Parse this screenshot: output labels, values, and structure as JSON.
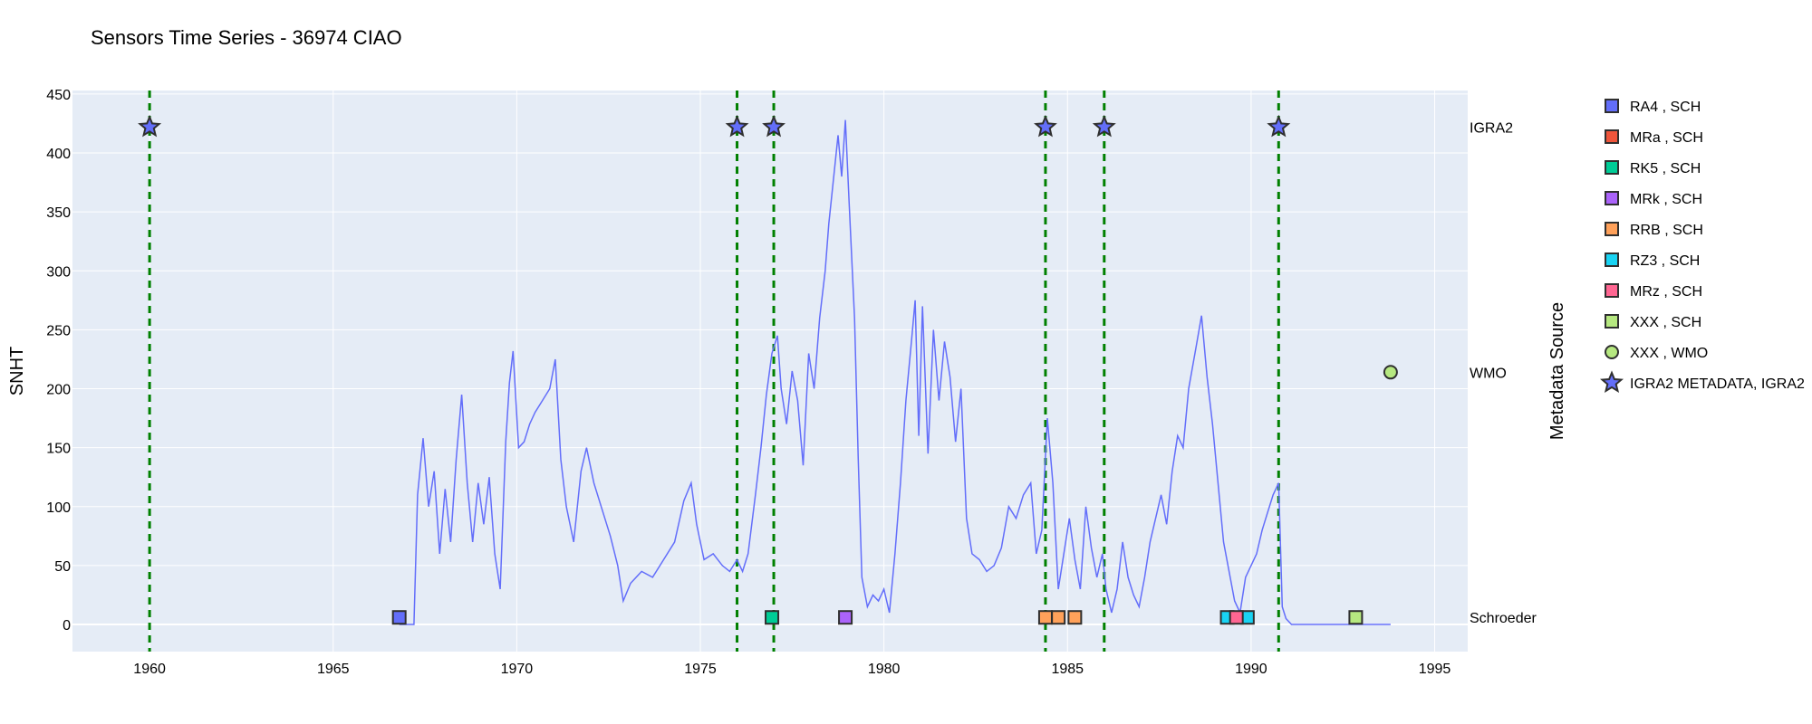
{
  "chart_data": {
    "type": "line",
    "title": "Sensors Time Series - 36974 CIAO",
    "ylabel": "SNHT",
    "secondary_ylabel": "Metadata Source",
    "xlim": [
      1957.9,
      1995.9
    ],
    "ylim": [
      -23,
      453
    ],
    "x_ticks": [
      1960,
      1965,
      1970,
      1975,
      1980,
      1985,
      1990,
      1995
    ],
    "y_ticks": [
      0,
      50,
      100,
      150,
      200,
      250,
      300,
      350,
      400,
      450
    ],
    "grid": true,
    "legend_position": "right",
    "source_levels": [
      {
        "label": "IGRA2",
        "y": 422
      },
      {
        "label": "WMO",
        "y": 214
      },
      {
        "label": "Schroeder",
        "y": 6
      }
    ],
    "snht_series": {
      "name": "SNHT",
      "color": "#636efa",
      "points": [
        [
          1966.8,
          0
        ],
        [
          1967.2,
          0
        ],
        [
          1967.3,
          110
        ],
        [
          1967.45,
          158
        ],
        [
          1967.6,
          100
        ],
        [
          1967.75,
          130
        ],
        [
          1967.9,
          60
        ],
        [
          1968.05,
          115
        ],
        [
          1968.2,
          70
        ],
        [
          1968.35,
          140
        ],
        [
          1968.5,
          195
        ],
        [
          1968.65,
          120
        ],
        [
          1968.8,
          70
        ],
        [
          1968.95,
          120
        ],
        [
          1969.1,
          85
        ],
        [
          1969.25,
          125
        ],
        [
          1969.4,
          60
        ],
        [
          1969.55,
          30
        ],
        [
          1969.7,
          155
        ],
        [
          1969.8,
          205
        ],
        [
          1969.9,
          232
        ],
        [
          1970.05,
          150
        ],
        [
          1970.2,
          155
        ],
        [
          1970.35,
          170
        ],
        [
          1970.5,
          180
        ],
        [
          1970.7,
          190
        ],
        [
          1970.9,
          200
        ],
        [
          1971.05,
          225
        ],
        [
          1971.2,
          140
        ],
        [
          1971.35,
          100
        ],
        [
          1971.55,
          70
        ],
        [
          1971.75,
          130
        ],
        [
          1971.9,
          150
        ],
        [
          1972.1,
          120
        ],
        [
          1972.35,
          95
        ],
        [
          1972.55,
          75
        ],
        [
          1972.75,
          50
        ],
        [
          1972.9,
          20
        ],
        [
          1973.1,
          35
        ],
        [
          1973.4,
          45
        ],
        [
          1973.7,
          40
        ],
        [
          1974.0,
          55
        ],
        [
          1974.3,
          70
        ],
        [
          1974.55,
          105
        ],
        [
          1974.75,
          120
        ],
        [
          1974.9,
          85
        ],
        [
          1975.1,
          55
        ],
        [
          1975.35,
          60
        ],
        [
          1975.6,
          50
        ],
        [
          1975.8,
          45
        ],
        [
          1976.0,
          55
        ],
        [
          1976.15,
          45
        ],
        [
          1976.3,
          60
        ],
        [
          1976.5,
          110
        ],
        [
          1976.65,
          150
        ],
        [
          1976.8,
          195
        ],
        [
          1976.95,
          230
        ],
        [
          1977.1,
          245
        ],
        [
          1977.2,
          200
        ],
        [
          1977.35,
          170
        ],
        [
          1977.5,
          215
        ],
        [
          1977.65,
          190
        ],
        [
          1977.8,
          135
        ],
        [
          1977.95,
          230
        ],
        [
          1978.1,
          200
        ],
        [
          1978.25,
          260
        ],
        [
          1978.4,
          300
        ],
        [
          1978.5,
          340
        ],
        [
          1978.6,
          370
        ],
        [
          1978.75,
          415
        ],
        [
          1978.85,
          380
        ],
        [
          1978.95,
          428
        ],
        [
          1979.05,
          360
        ],
        [
          1979.2,
          260
        ],
        [
          1979.3,
          140
        ],
        [
          1979.4,
          40
        ],
        [
          1979.55,
          15
        ],
        [
          1979.7,
          25
        ],
        [
          1979.85,
          20
        ],
        [
          1980.0,
          30
        ],
        [
          1980.15,
          10
        ],
        [
          1980.3,
          60
        ],
        [
          1980.45,
          120
        ],
        [
          1980.6,
          190
        ],
        [
          1980.75,
          240
        ],
        [
          1980.85,
          275
        ],
        [
          1980.95,
          160
        ],
        [
          1981.05,
          270
        ],
        [
          1981.2,
          145
        ],
        [
          1981.35,
          250
        ],
        [
          1981.5,
          190
        ],
        [
          1981.65,
          240
        ],
        [
          1981.8,
          210
        ],
        [
          1981.95,
          155
        ],
        [
          1982.1,
          200
        ],
        [
          1982.25,
          90
        ],
        [
          1982.4,
          60
        ],
        [
          1982.6,
          55
        ],
        [
          1982.8,
          45
        ],
        [
          1983.0,
          50
        ],
        [
          1983.2,
          65
        ],
        [
          1983.4,
          100
        ],
        [
          1983.6,
          90
        ],
        [
          1983.8,
          110
        ],
        [
          1984.0,
          120
        ],
        [
          1984.15,
          60
        ],
        [
          1984.3,
          80
        ],
        [
          1984.45,
          175
        ],
        [
          1984.6,
          120
        ],
        [
          1984.75,
          30
        ],
        [
          1984.9,
          60
        ],
        [
          1985.05,
          90
        ],
        [
          1985.2,
          55
        ],
        [
          1985.35,
          30
        ],
        [
          1985.5,
          100
        ],
        [
          1985.65,
          65
        ],
        [
          1985.8,
          40
        ],
        [
          1985.95,
          60
        ],
        [
          1986.05,
          30
        ],
        [
          1986.2,
          10
        ],
        [
          1986.35,
          30
        ],
        [
          1986.5,
          70
        ],
        [
          1986.65,
          40
        ],
        [
          1986.8,
          25
        ],
        [
          1986.95,
          15
        ],
        [
          1987.1,
          40
        ],
        [
          1987.25,
          70
        ],
        [
          1987.4,
          90
        ],
        [
          1987.55,
          110
        ],
        [
          1987.7,
          85
        ],
        [
          1987.85,
          130
        ],
        [
          1988.0,
          160
        ],
        [
          1988.15,
          150
        ],
        [
          1988.3,
          200
        ],
        [
          1988.5,
          235
        ],
        [
          1988.65,
          262
        ],
        [
          1988.8,
          210
        ],
        [
          1988.95,
          170
        ],
        [
          1989.1,
          120
        ],
        [
          1989.25,
          70
        ],
        [
          1989.4,
          45
        ],
        [
          1989.55,
          20
        ],
        [
          1989.7,
          10
        ],
        [
          1989.85,
          40
        ],
        [
          1990.0,
          50
        ],
        [
          1990.15,
          60
        ],
        [
          1990.3,
          80
        ],
        [
          1990.45,
          95
        ],
        [
          1990.6,
          110
        ],
        [
          1990.75,
          120
        ],
        [
          1990.85,
          15
        ],
        [
          1990.95,
          5
        ],
        [
          1991.1,
          0
        ],
        [
          1993.8,
          0
        ]
      ]
    },
    "vertical_lines": [
      1960.0,
      1976.0,
      1977.0,
      1984.4,
      1986.0,
      1990.75
    ],
    "vertical_line_color": "#008000",
    "series": [
      {
        "name": "RA4 , SCH",
        "color": "#636efa",
        "symbol": "square",
        "points": [
          [
            1966.8,
            6
          ]
        ]
      },
      {
        "name": "MRa , SCH",
        "color": "#ef553b",
        "symbol": "square",
        "points": []
      },
      {
        "name": "RK5 , SCH",
        "color": "#00cc96",
        "symbol": "square",
        "points": [
          [
            1976.95,
            6
          ]
        ]
      },
      {
        "name": "MRk , SCH",
        "color": "#ab63fa",
        "symbol": "square",
        "points": [
          [
            1978.95,
            6
          ]
        ]
      },
      {
        "name": "RRB , SCH",
        "color": "#ffa15a",
        "symbol": "square",
        "points": [
          [
            1984.4,
            6
          ],
          [
            1984.75,
            6
          ],
          [
            1985.2,
            6
          ]
        ]
      },
      {
        "name": "RZ3 , SCH",
        "color": "#19d3f3",
        "symbol": "square",
        "points": [
          [
            1989.35,
            6
          ],
          [
            1989.9,
            6
          ]
        ]
      },
      {
        "name": "MRz , SCH",
        "color": "#ff6692",
        "symbol": "square",
        "points": [
          [
            1989.6,
            6
          ]
        ]
      },
      {
        "name": "XXX , SCH",
        "color": "#b6e880",
        "symbol": "square",
        "points": [
          [
            1992.85,
            6
          ]
        ]
      },
      {
        "name": "XXX , WMO",
        "color": "#b6e880",
        "symbol": "circle",
        "points": [
          [
            1993.8,
            214
          ]
        ]
      },
      {
        "name": "IGRA2 METADATA, IGRA2",
        "color": "#636efa",
        "symbol": "star",
        "points": [
          [
            1960.0,
            422
          ],
          [
            1976.0,
            422
          ],
          [
            1977.0,
            422
          ],
          [
            1984.4,
            422
          ],
          [
            1986.0,
            422
          ],
          [
            1990.75,
            422
          ]
        ]
      }
    ]
  }
}
